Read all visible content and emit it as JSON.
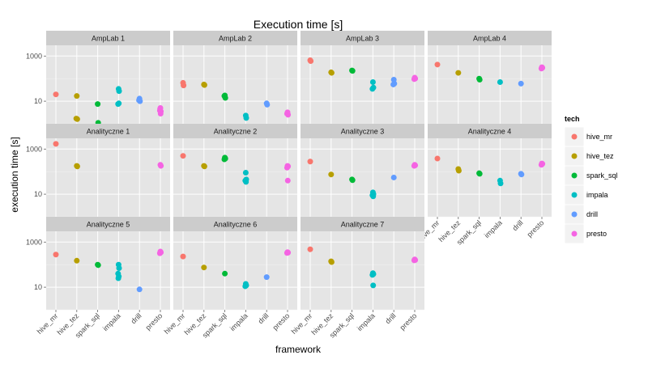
{
  "chart_data": {
    "type": "scatter",
    "title": "Execution time [s]",
    "xlabel": "framework",
    "ylabel": "execution time [s]",
    "y_scale": "log10",
    "ylim": [
      1,
      3000
    ],
    "y_ticks": [
      10,
      1000
    ],
    "y_tick_labels": [
      "10",
      "1000"
    ],
    "categories": [
      "hive_mr",
      "hive_tez",
      "spark_sql",
      "impala",
      "drill",
      "presto"
    ],
    "grid": true,
    "legend": {
      "title": "tech",
      "position": "right",
      "entries": [
        "hive_mr",
        "hive_tez",
        "spark_sql",
        "impala",
        "drill",
        "presto"
      ]
    },
    "colors": {
      "hive_mr": "#F8766D",
      "hive_tez": "#B79F00",
      "spark_sql": "#00BA38",
      "impala": "#00BFC4",
      "drill": "#619CFF",
      "presto": "#F564E3",
      "panel_bg": "#E5E5E5",
      "strip_bg": "#CCCCCC"
    },
    "panels": [
      {
        "name": "AmpLab 1",
        "points": {
          "hive_mr": [
            20
          ],
          "hive_tez": [
            17,
            1.6,
            1.7
          ],
          "spark_sql": [
            7.5,
            1.1
          ],
          "impala": [
            35,
            28,
            7.5,
            8
          ],
          "drill": [
            13,
            10,
            11
          ],
          "presto": [
            5,
            3.5,
            3.8,
            2.8,
            4.5
          ]
        }
      },
      {
        "name": "AmpLab 2",
        "points": {
          "hive_mr": [
            65,
            50
          ],
          "hive_tez": [
            55,
            52
          ],
          "spark_sql": [
            18,
            14,
            17
          ],
          "impala": [
            2.3,
            1.8
          ],
          "drill": [
            8,
            7
          ],
          "presto": [
            3.2,
            2.5,
            2.8
          ]
        }
      },
      {
        "name": "AmpLab 3",
        "points": {
          "hive_mr": [
            650,
            600
          ],
          "hive_tez": [
            190,
            180
          ],
          "spark_sql": [
            230,
            220
          ],
          "impala": [
            70,
            40,
            35
          ],
          "drill": [
            90,
            60,
            55
          ],
          "presto": [
            110,
            100,
            95
          ]
        }
      },
      {
        "name": "AmpLab 4",
        "points": {
          "hive_mr": [
            420
          ],
          "hive_tez": [
            180
          ],
          "spark_sql": [
            100,
            90
          ],
          "impala": [
            70
          ],
          "drill": [
            60
          ],
          "presto": [
            320,
            300,
            280
          ]
        }
      },
      {
        "name": "Analityczne 1",
        "points": {
          "hive_mr": [
            1700
          ],
          "hive_tez": [
            180,
            170
          ],
          "presto": [
            200,
            180
          ]
        }
      },
      {
        "name": "Analityczne 2",
        "points": {
          "hive_mr": [
            500
          ],
          "hive_tez": [
            180,
            170
          ],
          "spark_sql": [
            420,
            380,
            350
          ],
          "impala": [
            90,
            45,
            40,
            35
          ],
          "presto": [
            180,
            170,
            150,
            40
          ]
        }
      },
      {
        "name": "Analityczne 3",
        "points": {
          "hive_mr": [
            280
          ],
          "hive_tez": [
            75
          ],
          "spark_sql": [
            45,
            42
          ],
          "impala": [
            12,
            10,
            9,
            8
          ],
          "drill": [
            55
          ],
          "presto": [
            200,
            190,
            180
          ]
        }
      },
      {
        "name": "Analityczne 4",
        "points": {
          "hive_mr": [
            380
          ],
          "hive_tez": [
            130,
            110
          ],
          "spark_sql": [
            85,
            80
          ],
          "impala": [
            40,
            30
          ],
          "drill": [
            80,
            75
          ],
          "presto": [
            230,
            220,
            200
          ]
        }
      },
      {
        "name": "Analityczne 5",
        "points": {
          "hive_mr": [
            280
          ],
          "hive_tez": [
            150
          ],
          "spark_sql": [
            100,
            95
          ],
          "impala": [
            100,
            70,
            40,
            30,
            25
          ],
          "drill": [
            8
          ],
          "presto": [
            380,
            350,
            320
          ]
        }
      },
      {
        "name": "Analityczne 6",
        "points": {
          "hive_mr": [
            230
          ],
          "hive_tez": [
            75
          ],
          "spark_sql": [
            40
          ],
          "impala": [
            14,
            12,
            11
          ],
          "drill": [
            28
          ],
          "presto": [
            360,
            340,
            330
          ]
        }
      },
      {
        "name": "Analityczne 7",
        "points": {
          "hive_mr": [
            480
          ],
          "hive_tez": [
            140,
            130
          ],
          "impala": [
            42,
            38,
            35,
            12
          ],
          "presto": [
            170,
            160,
            155
          ]
        }
      }
    ]
  }
}
